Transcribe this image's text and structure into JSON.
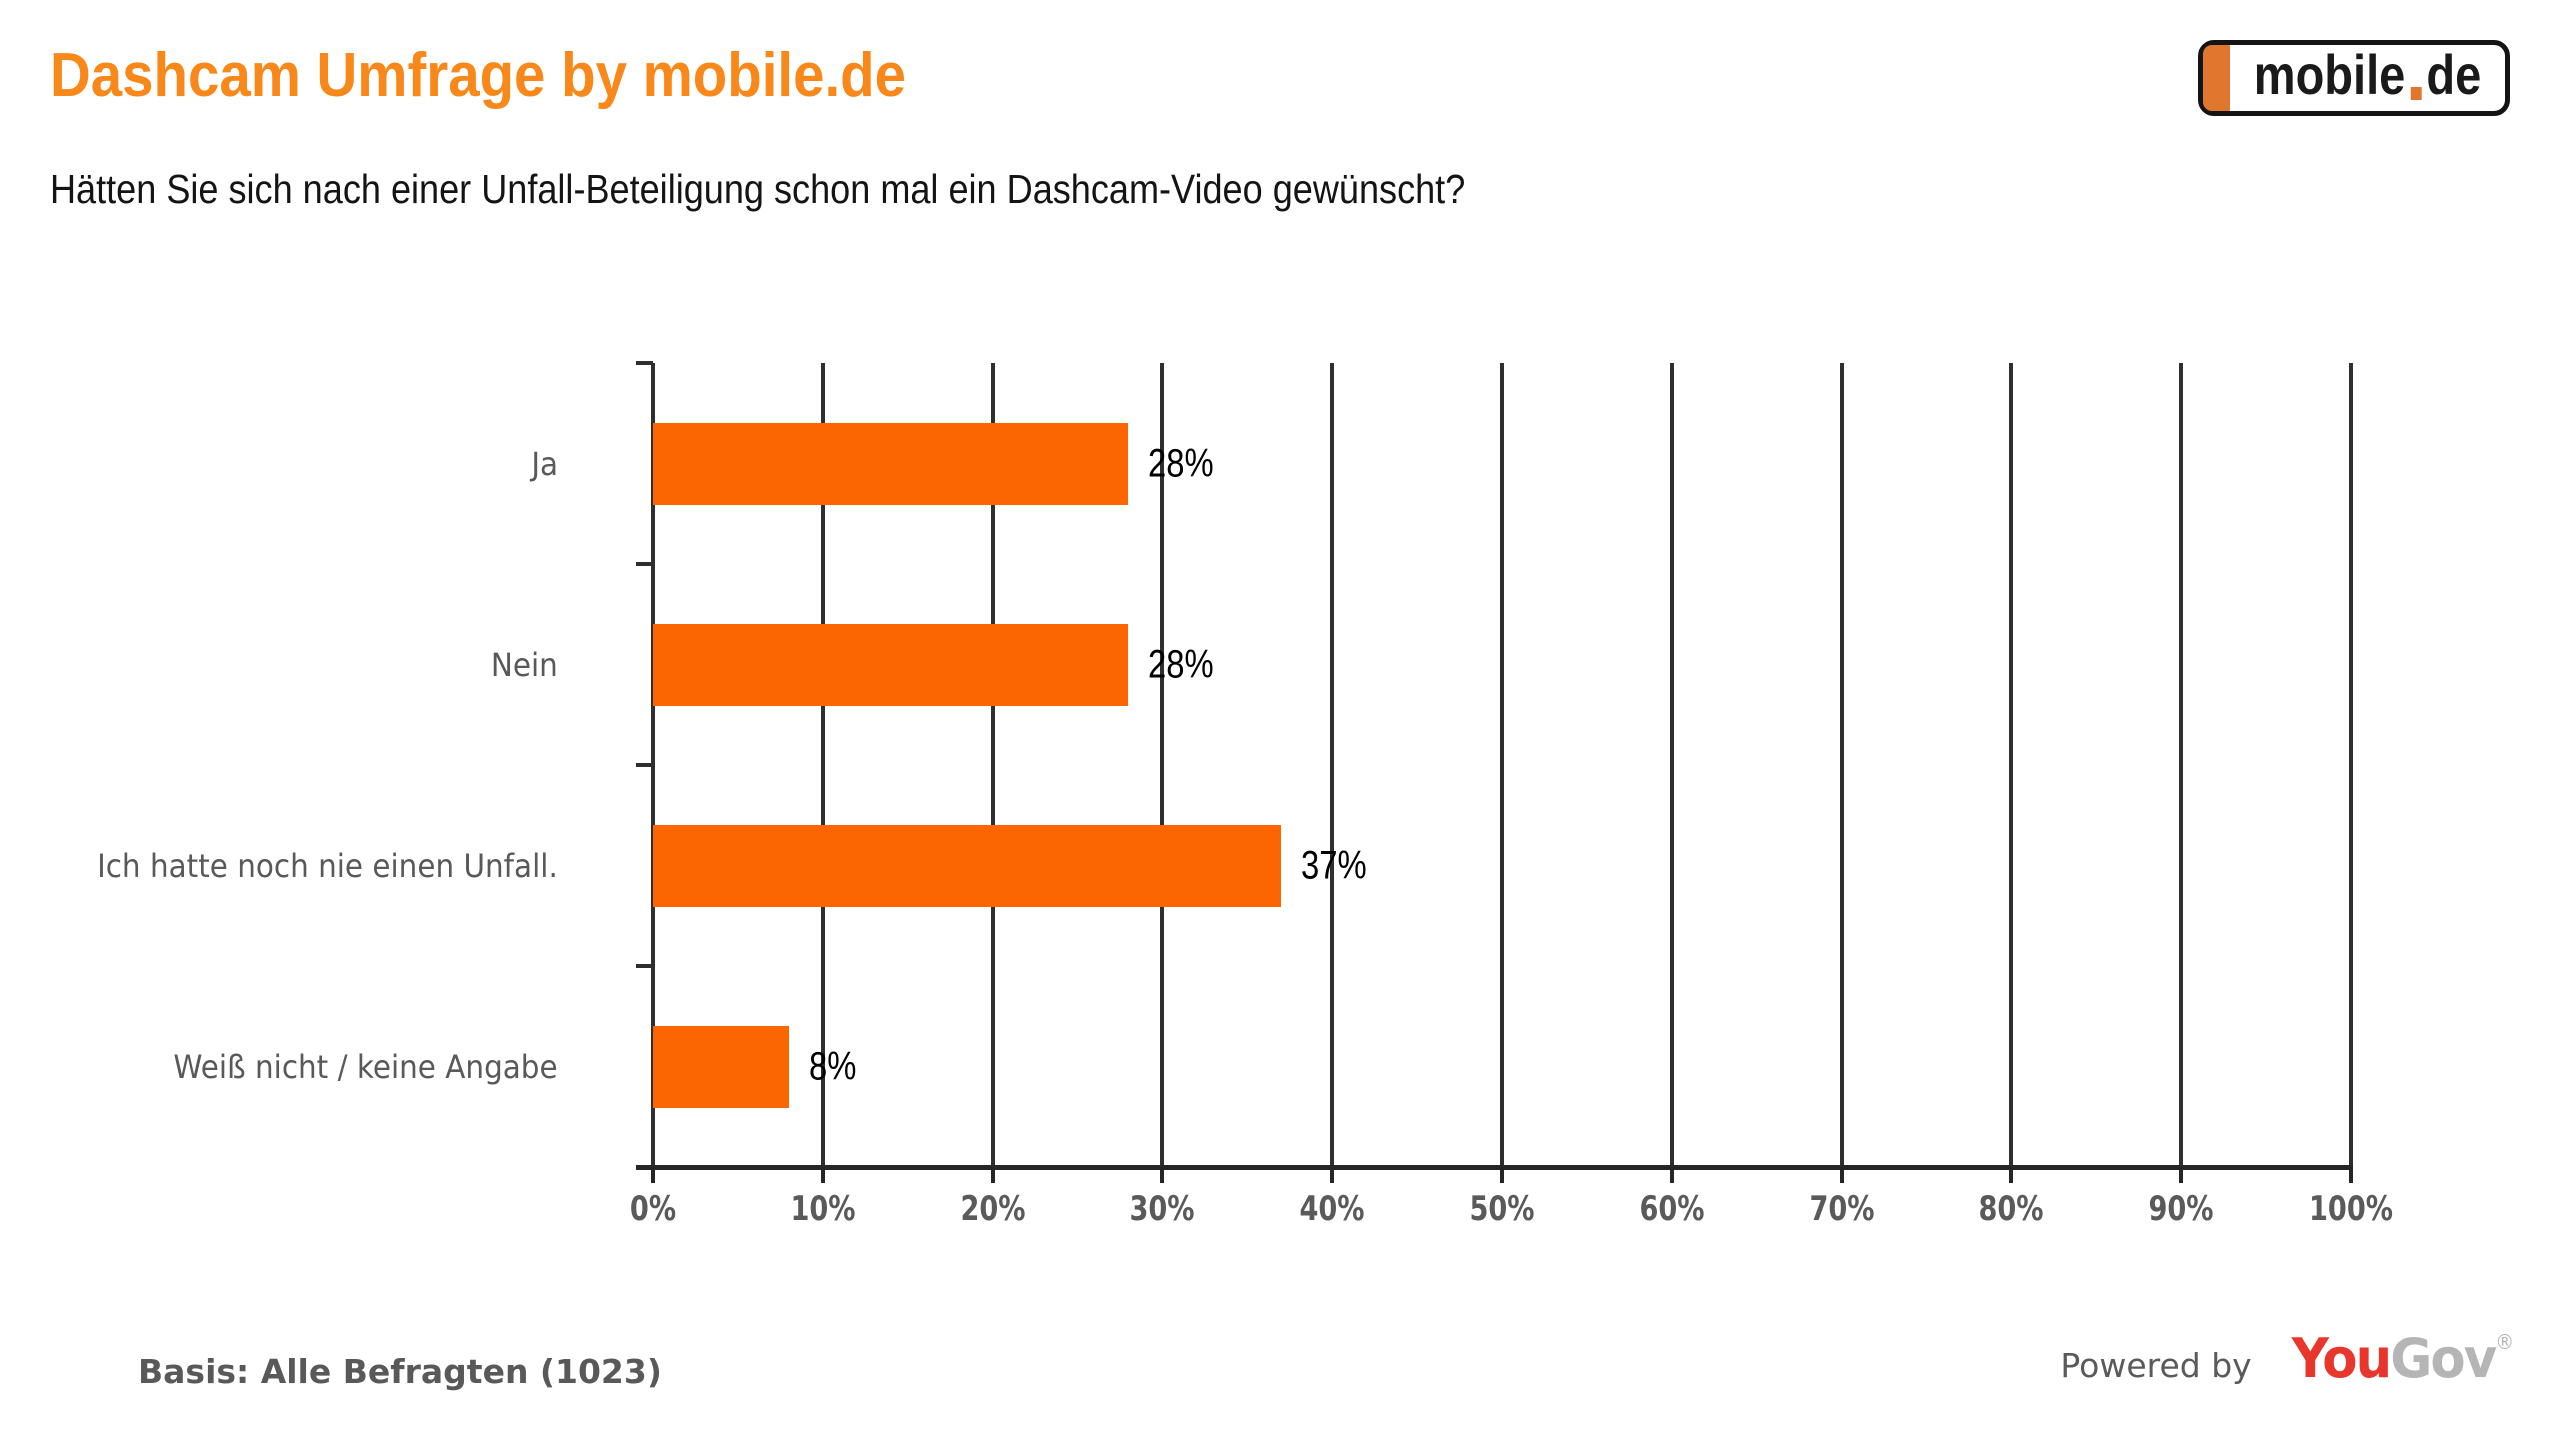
{
  "header": {
    "title": "Dashcam Umfrage by mobile.de",
    "question": "Hätten Sie sich nach einer Unfall-Beteiligung schon mal ein Dashcam-Video gewünscht?"
  },
  "logo": {
    "name": "mobile.de",
    "text_main": "mobile",
    "text_tld": "de"
  },
  "chart_data": {
    "type": "bar",
    "orientation": "horizontal",
    "title": "Dashcam Umfrage by mobile.de",
    "subtitle": "Hätten Sie sich nach einer Unfall-Beteiligung schon mal ein Dashcam-Video gewünscht?",
    "categories": [
      "Ja",
      "Nein",
      "Ich hatte noch nie einen Unfall.",
      "Weiß nicht / keine Angabe"
    ],
    "values": [
      28,
      28,
      37,
      8
    ],
    "data_labels": [
      "28%",
      "28%",
      "37%",
      "8%"
    ],
    "xlim": [
      0,
      100
    ],
    "xticks": [
      0,
      10,
      20,
      30,
      40,
      50,
      60,
      70,
      80,
      90,
      100
    ],
    "xtick_labels": [
      "0%",
      "10%",
      "20%",
      "30%",
      "40%",
      "50%",
      "60%",
      "70%",
      "80%",
      "90%",
      "100%"
    ],
    "grid": "vertical",
    "legend": "none",
    "bar_color": "#FB6602"
  },
  "footer": {
    "basis": "Basis: Alle Befragten (1023)",
    "powered_by": "Powered by",
    "yougov_you": "You",
    "yougov_gov": "Gov",
    "yougov_reg": "®"
  },
  "colors": {
    "title_orange": "#F8881A",
    "bar_orange": "#FB6602",
    "logo_plate_orange": "#DF782E",
    "grid_dark": "#2F2F2F",
    "axis_dark": "#262626",
    "label_gray": "#595959",
    "yougov_red": "#E8362D",
    "yougov_gray": "#B5B5B5"
  }
}
